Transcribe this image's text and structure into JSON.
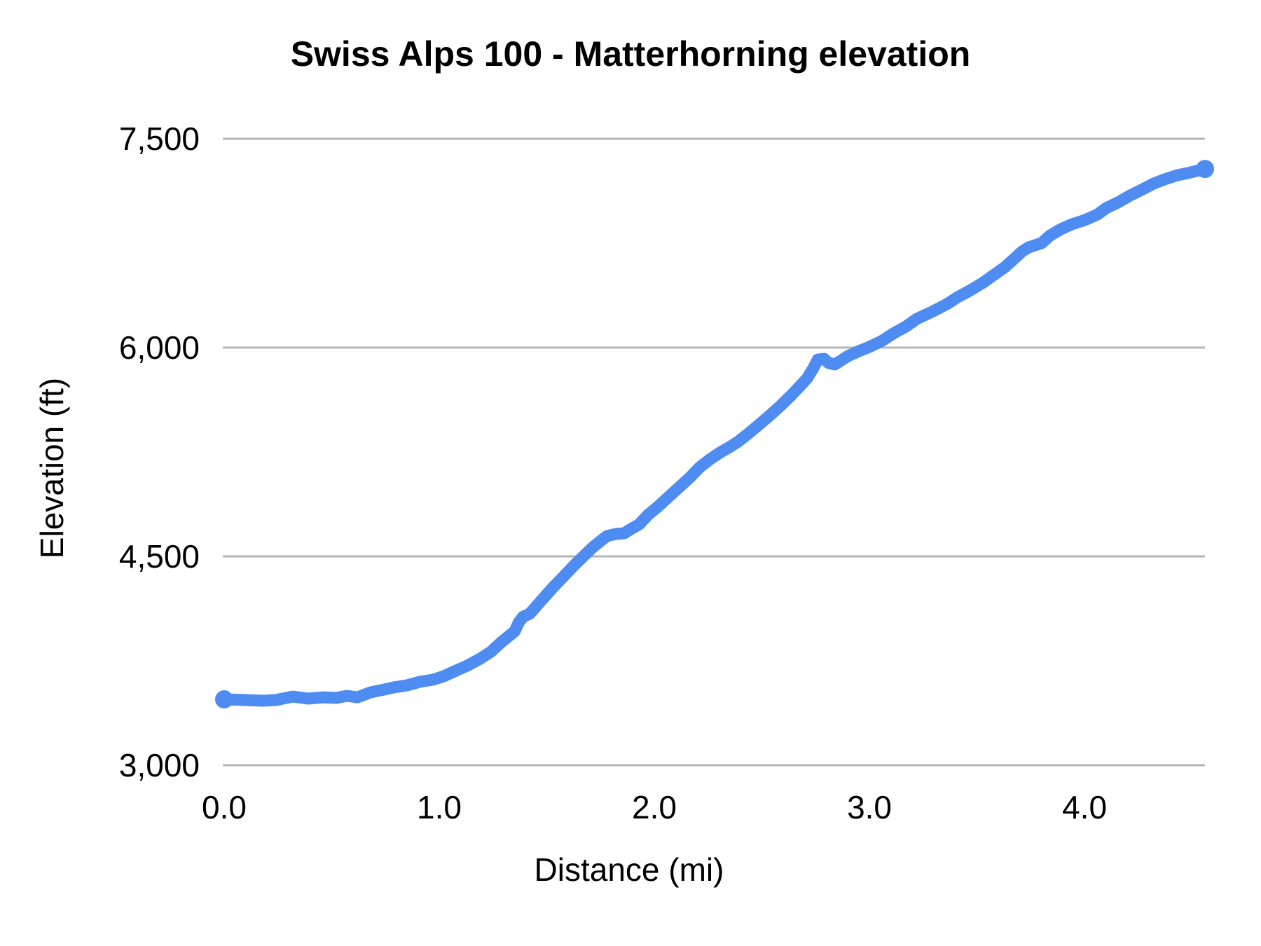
{
  "title": "Swiss Alps 100 - Matterhorning elevation",
  "colors": {
    "line": "#4e8cf1",
    "grid": "#b5b5b5",
    "text": "#000000",
    "background": "#ffffff"
  },
  "chart_data": {
    "type": "line",
    "title": "Swiss Alps 100 - Matterhorning elevation",
    "xlabel": "Distance (mi)",
    "ylabel": "Elevation (ft)",
    "legend": "none",
    "grid": "horizontal",
    "xlim": [
      0,
      4.56
    ],
    "ylim": [
      3000,
      7500
    ],
    "x_ticks": {
      "values": [
        0,
        1,
        2,
        3,
        4
      ],
      "labels": [
        "0.0",
        "1.0",
        "2.0",
        "3.0",
        "4.0"
      ]
    },
    "y_ticks": {
      "values": [
        3000,
        4500,
        6000,
        7500
      ],
      "labels": [
        "3,000",
        "4,500",
        "6,000",
        "7,500"
      ]
    },
    "series": [
      {
        "name": "Elevation",
        "x": [
          0.0,
          0.1,
          0.18,
          0.24,
          0.32,
          0.39,
          0.46,
          0.52,
          0.57,
          0.62,
          0.68,
          0.73,
          0.79,
          0.85,
          0.91,
          0.97,
          1.02,
          1.07,
          1.13,
          1.19,
          1.24,
          1.29,
          1.35,
          1.37,
          1.39,
          1.42,
          1.44,
          1.48,
          1.53,
          1.58,
          1.63,
          1.67,
          1.71,
          1.75,
          1.78,
          1.82,
          1.86,
          1.89,
          1.93,
          1.97,
          2.02,
          2.07,
          2.12,
          2.17,
          2.21,
          2.26,
          2.31,
          2.35,
          2.39,
          2.44,
          2.49,
          2.54,
          2.59,
          2.64,
          2.68,
          2.71,
          2.74,
          2.76,
          2.79,
          2.81,
          2.84,
          2.87,
          2.9,
          2.95,
          3.0,
          3.06,
          3.11,
          3.17,
          3.22,
          3.29,
          3.36,
          3.41,
          3.47,
          3.53,
          3.58,
          3.63,
          3.67,
          3.71,
          3.74,
          3.77,
          3.8,
          3.84,
          3.89,
          3.94,
          4.0,
          4.06,
          4.1,
          4.16,
          4.21,
          4.27,
          4.32,
          4.37,
          4.43,
          4.49,
          4.53,
          4.56
        ],
        "y": [
          3473,
          3468,
          3463,
          3468,
          3493,
          3478,
          3488,
          3483,
          3498,
          3488,
          3523,
          3539,
          3559,
          3574,
          3599,
          3614,
          3639,
          3674,
          3715,
          3765,
          3815,
          3886,
          3961,
          4027,
          4067,
          4087,
          4122,
          4193,
          4279,
          4359,
          4440,
          4500,
          4560,
          4611,
          4646,
          4661,
          4666,
          4696,
          4731,
          4797,
          4862,
          4933,
          5003,
          5074,
          5139,
          5199,
          5250,
          5285,
          5325,
          5386,
          5451,
          5517,
          5587,
          5662,
          5728,
          5778,
          5854,
          5914,
          5919,
          5889,
          5879,
          5909,
          5939,
          5974,
          6005,
          6050,
          6100,
          6151,
          6206,
          6256,
          6312,
          6362,
          6412,
          6468,
          6523,
          6578,
          6634,
          6690,
          6720,
          6735,
          6750,
          6805,
          6850,
          6885,
          6915,
          6956,
          7001,
          7046,
          7091,
          7137,
          7177,
          7207,
          7237,
          7257,
          7272,
          7283
        ]
      }
    ]
  }
}
